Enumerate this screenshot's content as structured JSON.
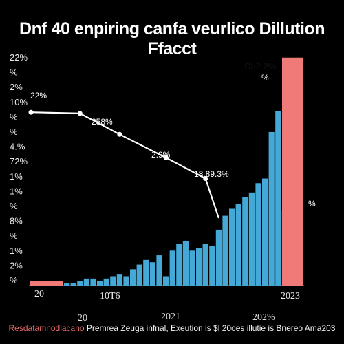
{
  "chart_data": {
    "type": "bar",
    "title": "Dnf 40 enpiring canfa veurlico Dillution Ffacct",
    "y_ticks": [
      "22%",
      "%",
      "2%",
      "10%",
      "%",
      "%",
      "4.%",
      "72%",
      "1%",
      "1%",
      "%",
      "8%",
      "%",
      "1%",
      "2%",
      "%"
    ],
    "x_ticks_top": [
      "20",
      "10T6",
      "2023"
    ],
    "x_ticks_bottom": [
      "20",
      "2021",
      "202%"
    ],
    "series": [
      {
        "type": "bar",
        "color": "#45a9d8",
        "values": [
          1,
          1,
          2,
          3,
          3,
          2,
          3,
          4,
          5,
          4,
          7,
          9,
          11,
          10,
          13,
          4,
          15,
          18,
          19,
          15,
          16,
          18,
          17,
          24,
          30,
          33,
          35,
          38,
          40,
          44,
          46,
          66,
          75,
          32
        ]
      },
      {
        "type": "bar",
        "color": "#f07a78",
        "values": [
          2,
          2,
          2,
          2,
          98
        ]
      },
      {
        "type": "line",
        "color": "#ffffff",
        "x": [
          0,
          2,
          8,
          15,
          21,
          23
        ],
        "y": [
          74.5,
          74,
          65,
          55,
          46,
          29
        ]
      }
    ],
    "annotations": [
      "22%",
      "258%",
      "2.9%",
      "18.89.3%",
      "Ch2.2%",
      "%",
      "%"
    ],
    "ylim": [
      0,
      100
    ]
  },
  "footer": {
    "accent": "Resdatamnodlacano",
    "text": "Premrea Zeuga infnal, Exeution is",
    "tail": "$l 20oes illutie is Bnereo Ama203"
  }
}
